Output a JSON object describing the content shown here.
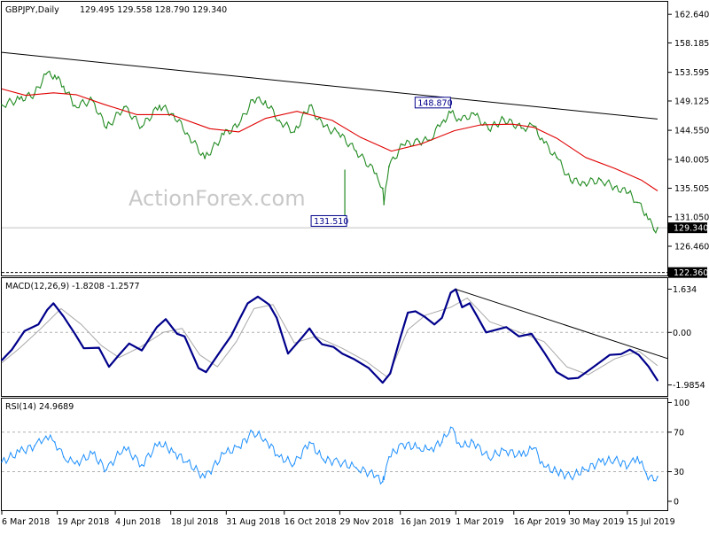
{
  "chart_data": {
    "type": "line",
    "symbol": "GBPJPY,Daily",
    "ohlc_header": "129.495 129.558 128.790 129.340",
    "watermark": "ActionForex.com",
    "colors": {
      "price": "#228b22",
      "ma": "#e00000",
      "trendline": "#000000",
      "macd": "#00008b",
      "signal": "#a8a8a8",
      "rsi": "#1e90ff",
      "box_text": "#00008b"
    },
    "x_tick_labels": [
      "6 Mar 2018",
      "19 Apr 2018",
      "4 Jun 2018",
      "18 Jul 2018",
      "31 Aug 2018",
      "16 Oct 2018",
      "29 Nov 2018",
      "16 Jan 2019",
      "1 Mar 2019",
      "16 Apr 2019",
      "30 May 2019",
      "15 Jul 2019"
    ],
    "price_panel": {
      "y_ticks": [
        "162.640",
        "158.185",
        "153.595",
        "149.125",
        "144.550",
        "140.005",
        "135.505",
        "131.050",
        "126.460"
      ],
      "ylim": [
        121.9,
        164.6
      ],
      "current_price_label": "129.340",
      "current_price": 129.34,
      "support_label": "122.360",
      "support": 122.36,
      "annotations": [
        {
          "text": "148.870",
          "date": "2019-02-22",
          "value": 148.87
        },
        {
          "text": "131.510",
          "date": "2018-12-03",
          "value": 131.51
        }
      ],
      "trendline": [
        {
          "date": "2018-03-06",
          "value": 156.7
        },
        {
          "date": "2019-08-08",
          "value": 146.3
        }
      ],
      "price_series": [
        {
          "date": "2018-03-06",
          "value": 148.5
        },
        {
          "date": "2018-03-20",
          "value": 149.4
        },
        {
          "date": "2018-04-01",
          "value": 150.2
        },
        {
          "date": "2018-04-10",
          "value": 153.3
        },
        {
          "date": "2018-04-17",
          "value": 153.1
        },
        {
          "date": "2018-04-24",
          "value": 151.4
        },
        {
          "date": "2018-05-03",
          "value": 148.4
        },
        {
          "date": "2018-05-17",
          "value": 149.2
        },
        {
          "date": "2018-05-28",
          "value": 144.9
        },
        {
          "date": "2018-06-11",
          "value": 148.2
        },
        {
          "date": "2018-06-25",
          "value": 145.1
        },
        {
          "date": "2018-07-09",
          "value": 148.4
        },
        {
          "date": "2018-07-20",
          "value": 147.1
        },
        {
          "date": "2018-07-31",
          "value": 144.1
        },
        {
          "date": "2018-08-14",
          "value": 140.2
        },
        {
          "date": "2018-08-29",
          "value": 143.9
        },
        {
          "date": "2018-09-10",
          "value": 145.4
        },
        {
          "date": "2018-09-21",
          "value": 149.3
        },
        {
          "date": "2018-10-01",
          "value": 149.1
        },
        {
          "date": "2018-10-12",
          "value": 146.1
        },
        {
          "date": "2018-10-24",
          "value": 144.3
        },
        {
          "date": "2018-11-05",
          "value": 148.4
        },
        {
          "date": "2018-11-16",
          "value": 145.1
        },
        {
          "date": "2018-11-28",
          "value": 144.1
        },
        {
          "date": "2018-12-12",
          "value": 141.3
        },
        {
          "date": "2018-12-28",
          "value": 137.8
        },
        {
          "date": "2019-01-02",
          "value": 135.5
        },
        {
          "date": "2019-01-03",
          "value": 133.0
        },
        {
          "date": "2019-01-07",
          "value": 138.9
        },
        {
          "date": "2019-01-18",
          "value": 142.3
        },
        {
          "date": "2019-01-31",
          "value": 142.8
        },
        {
          "date": "2019-02-08",
          "value": 143.0
        },
        {
          "date": "2019-02-18",
          "value": 145.8
        },
        {
          "date": "2019-02-25",
          "value": 147.3
        },
        {
          "date": "2019-03-05",
          "value": 146.1
        },
        {
          "date": "2019-03-15",
          "value": 147.2
        },
        {
          "date": "2019-03-27",
          "value": 144.7
        },
        {
          "date": "2019-04-08",
          "value": 146.3
        },
        {
          "date": "2019-04-22",
          "value": 144.9
        },
        {
          "date": "2019-05-02",
          "value": 145.2
        },
        {
          "date": "2019-05-10",
          "value": 142.6
        },
        {
          "date": "2019-05-20",
          "value": 140.3
        },
        {
          "date": "2019-05-31",
          "value": 136.7
        },
        {
          "date": "2019-06-11",
          "value": 136.4
        },
        {
          "date": "2019-06-24",
          "value": 136.8
        },
        {
          "date": "2019-07-05",
          "value": 135.7
        },
        {
          "date": "2019-07-16",
          "value": 134.8
        },
        {
          "date": "2019-07-23",
          "value": 133.3
        },
        {
          "date": "2019-07-30",
          "value": 131.5
        },
        {
          "date": "2019-08-05",
          "value": 129.0
        },
        {
          "date": "2019-08-08",
          "value": 129.34
        }
      ],
      "ma_series": [
        {
          "date": "2018-03-06",
          "value": 151.0
        },
        {
          "date": "2018-03-25",
          "value": 150.0
        },
        {
          "date": "2018-04-16",
          "value": 150.4
        },
        {
          "date": "2018-05-04",
          "value": 150.1
        },
        {
          "date": "2018-05-26",
          "value": 148.6
        },
        {
          "date": "2018-06-21",
          "value": 147.0
        },
        {
          "date": "2018-07-18",
          "value": 147.0
        },
        {
          "date": "2018-08-18",
          "value": 144.8
        },
        {
          "date": "2018-09-10",
          "value": 144.3
        },
        {
          "date": "2018-10-01",
          "value": 146.4
        },
        {
          "date": "2018-10-26",
          "value": 147.5
        },
        {
          "date": "2018-11-23",
          "value": 146.1
        },
        {
          "date": "2018-12-15",
          "value": 143.5
        },
        {
          "date": "2019-01-09",
          "value": 141.3
        },
        {
          "date": "2019-02-01",
          "value": 142.4
        },
        {
          "date": "2019-02-28",
          "value": 144.5
        },
        {
          "date": "2019-03-21",
          "value": 145.4
        },
        {
          "date": "2019-04-15",
          "value": 145.5
        },
        {
          "date": "2019-05-02",
          "value": 145.0
        },
        {
          "date": "2019-05-20",
          "value": 143.3
        },
        {
          "date": "2019-06-12",
          "value": 140.3
        },
        {
          "date": "2019-07-05",
          "value": 138.6
        },
        {
          "date": "2019-07-26",
          "value": 136.8
        },
        {
          "date": "2019-08-08",
          "value": 135.1
        }
      ]
    },
    "macd_panel": {
      "label": "MACD(12,26,9) -1.8208 -1.2577",
      "y_ticks": [
        "1.634",
        "0.00",
        "-1.9854"
      ],
      "ylim": [
        -2.4,
        2.05
      ],
      "trendline": [
        {
          "date": "2019-03-01",
          "value": 1.63
        },
        {
          "date": "2019-08-08",
          "value": -0.85
        }
      ],
      "macd_series": [
        {
          "date": "2018-03-06",
          "value": -1.05
        },
        {
          "date": "2018-03-14",
          "value": -0.65
        },
        {
          "date": "2018-03-24",
          "value": 0.05
        },
        {
          "date": "2018-04-04",
          "value": 0.3
        },
        {
          "date": "2018-04-11",
          "value": 0.85
        },
        {
          "date": "2018-04-16",
          "value": 1.1
        },
        {
          "date": "2018-04-24",
          "value": 0.6
        },
        {
          "date": "2018-05-03",
          "value": -0.05
        },
        {
          "date": "2018-05-10",
          "value": -0.6
        },
        {
          "date": "2018-05-22",
          "value": -0.58
        },
        {
          "date": "2018-05-30",
          "value": -1.3
        },
        {
          "date": "2018-06-07",
          "value": -0.85
        },
        {
          "date": "2018-06-15",
          "value": -0.42
        },
        {
          "date": "2018-06-25",
          "value": -0.68
        },
        {
          "date": "2018-07-07",
          "value": 0.2
        },
        {
          "date": "2018-07-14",
          "value": 0.5
        },
        {
          "date": "2018-07-23",
          "value": -0.05
        },
        {
          "date": "2018-07-29",
          "value": -0.15
        },
        {
          "date": "2018-08-09",
          "value": -1.35
        },
        {
          "date": "2018-08-15",
          "value": -1.5
        },
        {
          "date": "2018-08-25",
          "value": -0.8
        },
        {
          "date": "2018-09-04",
          "value": -0.12
        },
        {
          "date": "2018-09-10",
          "value": 0.45
        },
        {
          "date": "2018-09-17",
          "value": 1.1
        },
        {
          "date": "2018-09-25",
          "value": 1.35
        },
        {
          "date": "2018-10-04",
          "value": 1.05
        },
        {
          "date": "2018-10-10",
          "value": 0.55
        },
        {
          "date": "2018-10-19",
          "value": -0.8
        },
        {
          "date": "2018-10-29",
          "value": -0.25
        },
        {
          "date": "2018-11-05",
          "value": 0.15
        },
        {
          "date": "2018-11-10",
          "value": -0.2
        },
        {
          "date": "2018-11-15",
          "value": -0.45
        },
        {
          "date": "2018-11-24",
          "value": -0.55
        },
        {
          "date": "2018-12-01",
          "value": -0.8
        },
        {
          "date": "2018-12-10",
          "value": -1.0
        },
        {
          "date": "2018-12-22",
          "value": -1.35
        },
        {
          "date": "2019-01-02",
          "value": -1.9
        },
        {
          "date": "2019-01-08",
          "value": -1.55
        },
        {
          "date": "2019-01-16",
          "value": -0.2
        },
        {
          "date": "2019-01-22",
          "value": 0.75
        },
        {
          "date": "2019-01-28",
          "value": 0.8
        },
        {
          "date": "2019-02-04",
          "value": 0.6
        },
        {
          "date": "2019-02-12",
          "value": 0.3
        },
        {
          "date": "2019-02-18",
          "value": 0.55
        },
        {
          "date": "2019-02-25",
          "value": 1.5
        },
        {
          "date": "2019-03-01",
          "value": 1.63
        },
        {
          "date": "2019-03-06",
          "value": 0.95
        },
        {
          "date": "2019-03-12",
          "value": 1.1
        },
        {
          "date": "2019-03-18",
          "value": 0.6
        },
        {
          "date": "2019-03-25",
          "value": 0.0
        },
        {
          "date": "2019-04-02",
          "value": 0.1
        },
        {
          "date": "2019-04-10",
          "value": 0.2
        },
        {
          "date": "2019-04-20",
          "value": -0.15
        },
        {
          "date": "2019-04-30",
          "value": -0.05
        },
        {
          "date": "2019-05-10",
          "value": -0.75
        },
        {
          "date": "2019-05-20",
          "value": -1.5
        },
        {
          "date": "2019-05-29",
          "value": -1.75
        },
        {
          "date": "2019-06-06",
          "value": -1.72
        },
        {
          "date": "2019-06-14",
          "value": -1.45
        },
        {
          "date": "2019-06-24",
          "value": -1.1
        },
        {
          "date": "2019-07-01",
          "value": -0.85
        },
        {
          "date": "2019-07-10",
          "value": -0.82
        },
        {
          "date": "2019-07-17",
          "value": -0.65
        },
        {
          "date": "2019-07-24",
          "value": -0.85
        },
        {
          "date": "2019-08-01",
          "value": -1.3
        },
        {
          "date": "2019-08-08",
          "value": -1.82
        }
      ],
      "signal_series": [
        {
          "date": "2018-03-06",
          "value": -1.15
        },
        {
          "date": "2018-03-20",
          "value": -0.6
        },
        {
          "date": "2018-04-05",
          "value": 0.1
        },
        {
          "date": "2018-04-22",
          "value": 0.9
        },
        {
          "date": "2018-05-08",
          "value": 0.3
        },
        {
          "date": "2018-05-24",
          "value": -0.5
        },
        {
          "date": "2018-06-07",
          "value": -0.95
        },
        {
          "date": "2018-06-24",
          "value": -0.55
        },
        {
          "date": "2018-07-12",
          "value": 0.0
        },
        {
          "date": "2018-07-27",
          "value": 0.15
        },
        {
          "date": "2018-08-10",
          "value": -0.85
        },
        {
          "date": "2018-08-24",
          "value": -1.3
        },
        {
          "date": "2018-09-08",
          "value": -0.35
        },
        {
          "date": "2018-09-22",
          "value": 0.9
        },
        {
          "date": "2018-10-07",
          "value": 1.05
        },
        {
          "date": "2018-10-24",
          "value": -0.4
        },
        {
          "date": "2018-11-10",
          "value": -0.15
        },
        {
          "date": "2018-12-01",
          "value": -0.6
        },
        {
          "date": "2018-12-20",
          "value": -1.1
        },
        {
          "date": "2019-01-06",
          "value": -1.7
        },
        {
          "date": "2019-01-22",
          "value": 0.1
        },
        {
          "date": "2019-02-05",
          "value": 0.65
        },
        {
          "date": "2019-02-25",
          "value": 0.95
        },
        {
          "date": "2019-03-10",
          "value": 1.3
        },
        {
          "date": "2019-03-28",
          "value": 0.4
        },
        {
          "date": "2019-04-18",
          "value": 0.05
        },
        {
          "date": "2019-05-10",
          "value": -0.35
        },
        {
          "date": "2019-05-28",
          "value": -1.3
        },
        {
          "date": "2019-06-14",
          "value": -1.6
        },
        {
          "date": "2019-07-05",
          "value": -1.0
        },
        {
          "date": "2019-07-24",
          "value": -0.7
        },
        {
          "date": "2019-08-08",
          "value": -1.26
        }
      ]
    },
    "rsi_panel": {
      "label": "RSI(14) 24.9689",
      "y_ticks": [
        "100",
        "70",
        "30",
        "0"
      ],
      "ylim": [
        -9,
        104
      ],
      "levels": [
        70,
        30
      ],
      "rsi_series": [
        {
          "date": "2018-03-06",
          "value": 40
        },
        {
          "date": "2018-03-20",
          "value": 50
        },
        {
          "date": "2018-04-01",
          "value": 56
        },
        {
          "date": "2018-04-10",
          "value": 66
        },
        {
          "date": "2018-04-17",
          "value": 60
        },
        {
          "date": "2018-04-24",
          "value": 45
        },
        {
          "date": "2018-05-03",
          "value": 38
        },
        {
          "date": "2018-05-17",
          "value": 48
        },
        {
          "date": "2018-05-28",
          "value": 32
        },
        {
          "date": "2018-06-11",
          "value": 55
        },
        {
          "date": "2018-06-25",
          "value": 37
        },
        {
          "date": "2018-07-09",
          "value": 60
        },
        {
          "date": "2018-07-20",
          "value": 50
        },
        {
          "date": "2018-07-31",
          "value": 40
        },
        {
          "date": "2018-08-14",
          "value": 24
        },
        {
          "date": "2018-08-29",
          "value": 48
        },
        {
          "date": "2018-09-10",
          "value": 55
        },
        {
          "date": "2018-09-21",
          "value": 70
        },
        {
          "date": "2018-10-01",
          "value": 63
        },
        {
          "date": "2018-10-12",
          "value": 45
        },
        {
          "date": "2018-10-24",
          "value": 38
        },
        {
          "date": "2018-11-05",
          "value": 60
        },
        {
          "date": "2018-11-16",
          "value": 42
        },
        {
          "date": "2018-11-28",
          "value": 40
        },
        {
          "date": "2018-12-12",
          "value": 34
        },
        {
          "date": "2018-12-28",
          "value": 26
        },
        {
          "date": "2019-01-02",
          "value": 20
        },
        {
          "date": "2019-01-03",
          "value": 22
        },
        {
          "date": "2019-01-07",
          "value": 45
        },
        {
          "date": "2019-01-18",
          "value": 58
        },
        {
          "date": "2019-01-31",
          "value": 54
        },
        {
          "date": "2019-02-08",
          "value": 52
        },
        {
          "date": "2019-02-18",
          "value": 60
        },
        {
          "date": "2019-02-25",
          "value": 75
        },
        {
          "date": "2019-03-05",
          "value": 55
        },
        {
          "date": "2019-03-15",
          "value": 60
        },
        {
          "date": "2019-03-27",
          "value": 44
        },
        {
          "date": "2019-04-08",
          "value": 52
        },
        {
          "date": "2019-04-22",
          "value": 46
        },
        {
          "date": "2019-05-02",
          "value": 54
        },
        {
          "date": "2019-05-10",
          "value": 35
        },
        {
          "date": "2019-05-20",
          "value": 30
        },
        {
          "date": "2019-05-31",
          "value": 25
        },
        {
          "date": "2019-06-11",
          "value": 32
        },
        {
          "date": "2019-06-24",
          "value": 40
        },
        {
          "date": "2019-07-05",
          "value": 42
        },
        {
          "date": "2019-07-16",
          "value": 36
        },
        {
          "date": "2019-07-23",
          "value": 45
        },
        {
          "date": "2019-07-30",
          "value": 28
        },
        {
          "date": "2019-08-05",
          "value": 21
        },
        {
          "date": "2019-08-08",
          "value": 25
        }
      ]
    }
  }
}
